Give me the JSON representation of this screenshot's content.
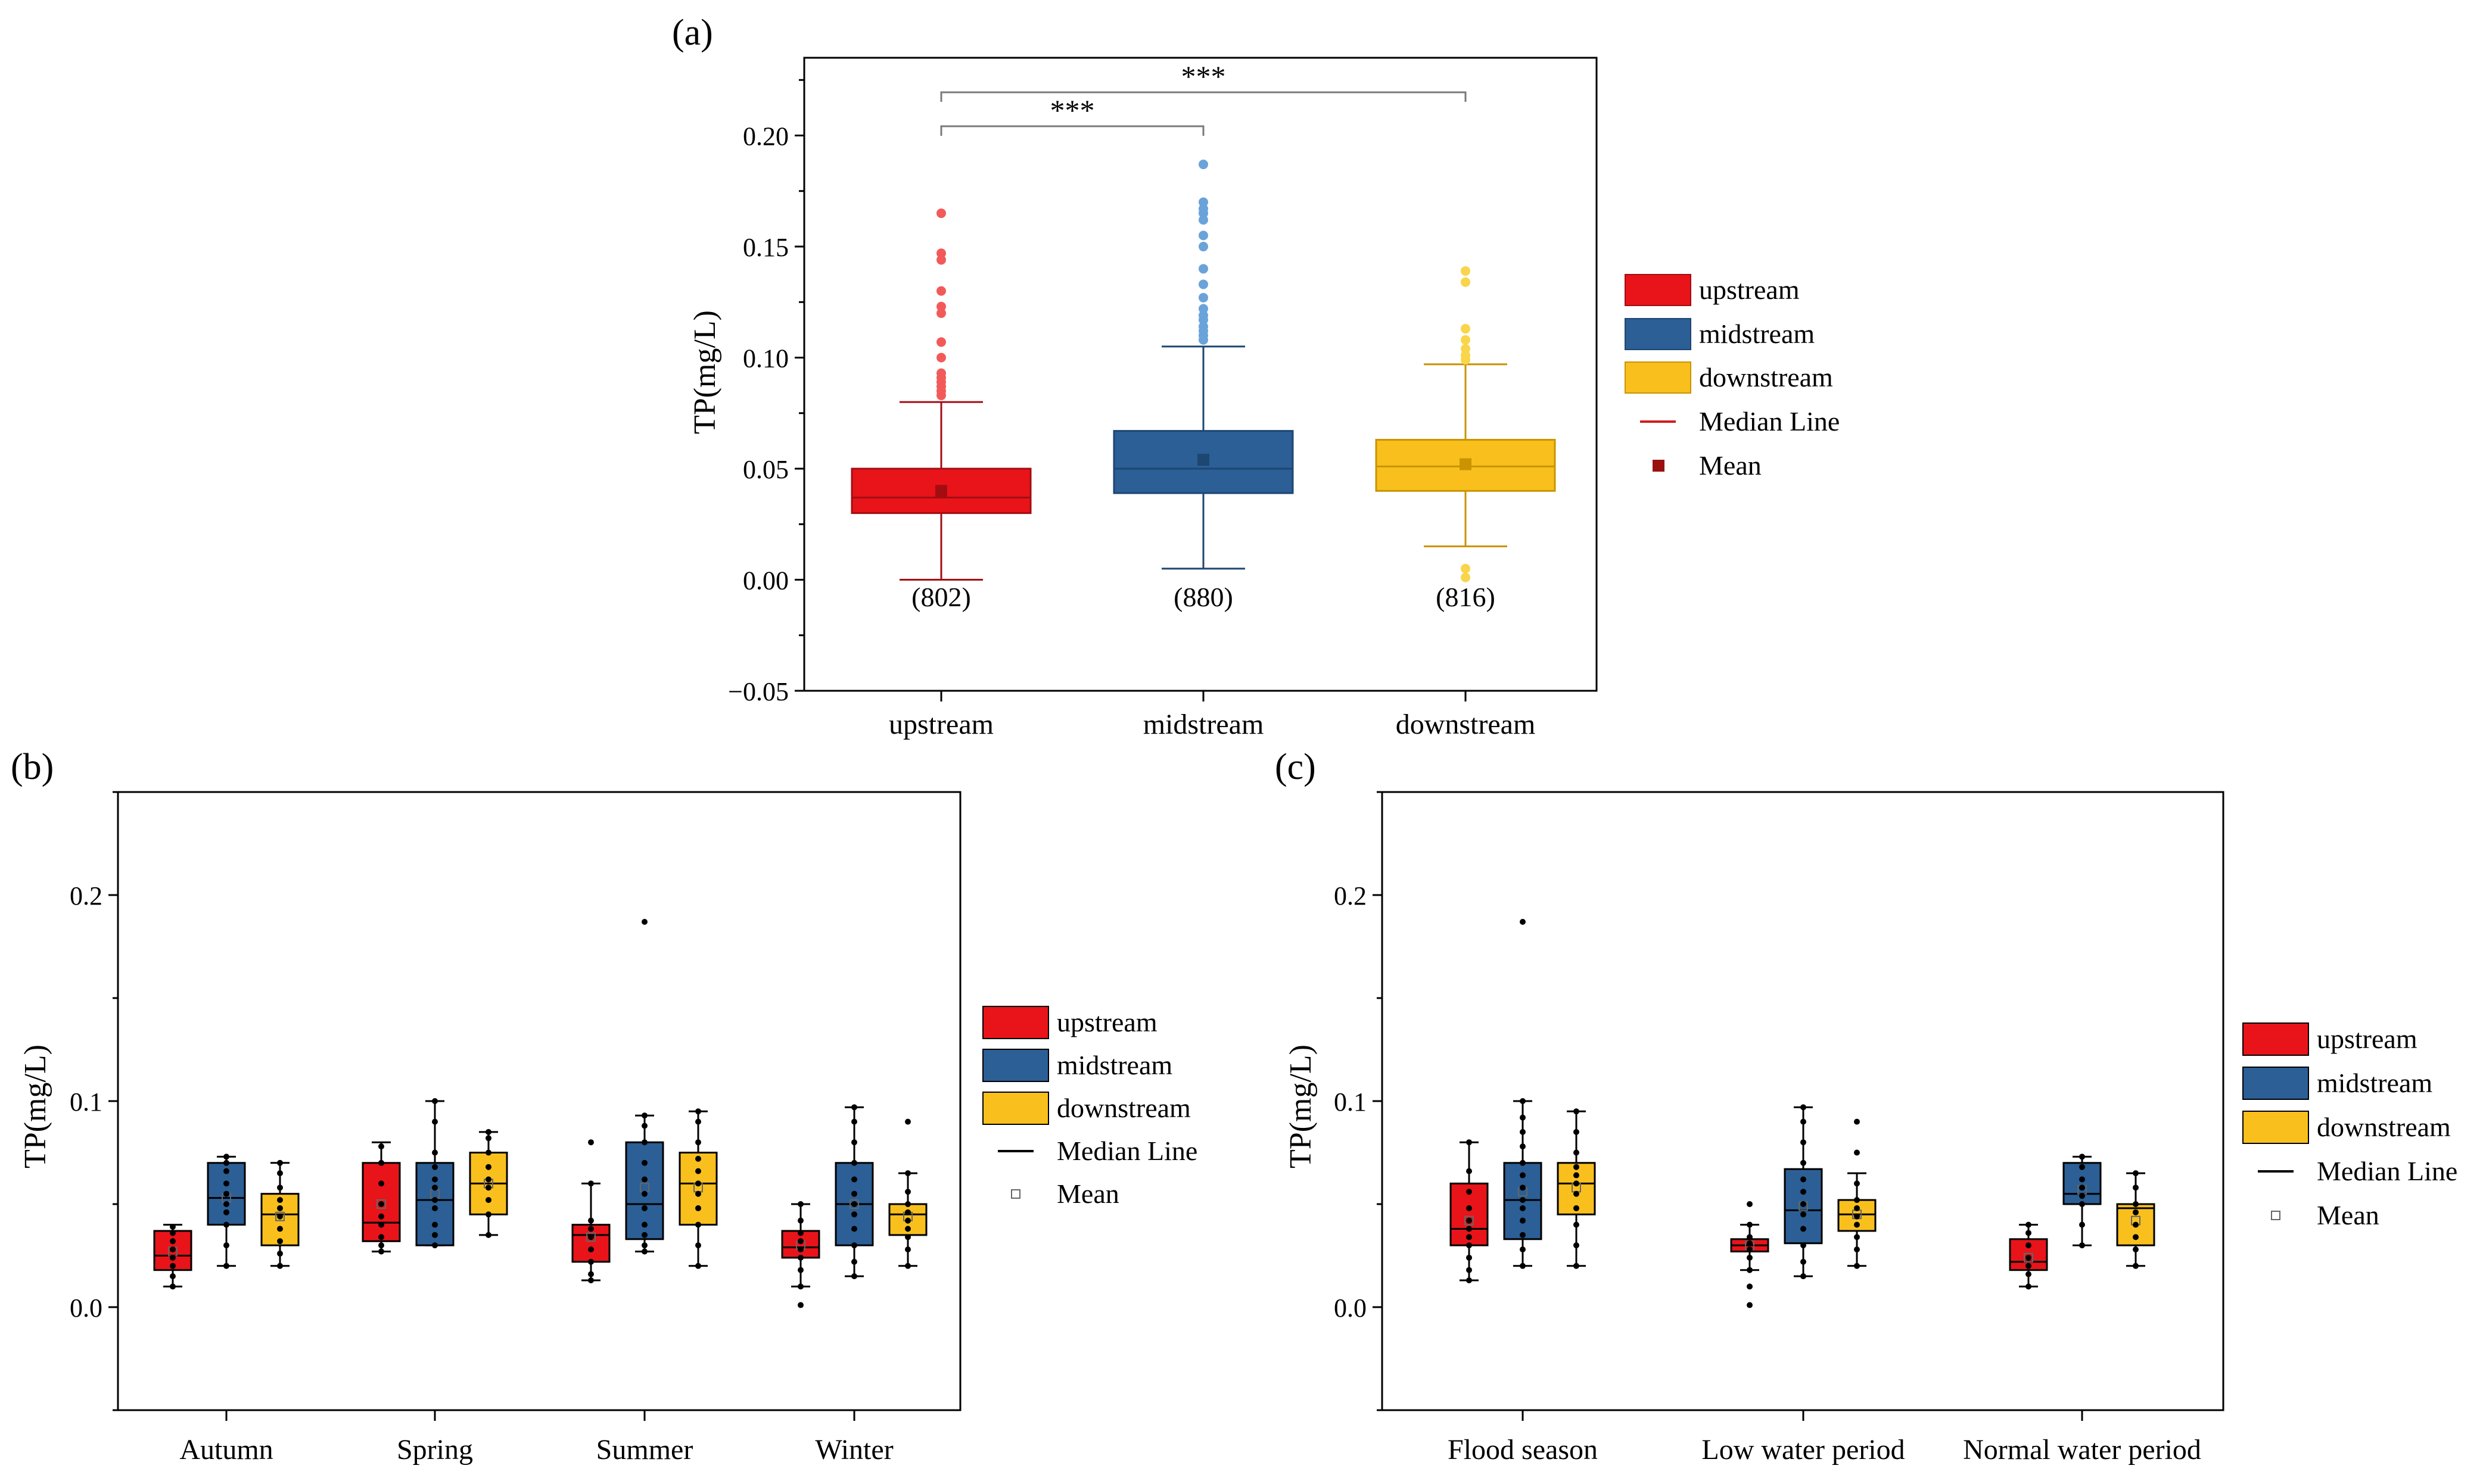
{
  "figure": {
    "categories": [
      "upstream",
      "midstream",
      "downstream"
    ],
    "colors": {
      "upstream": "#e8141a",
      "midstream": "#2b5f96",
      "downstream": "#f9c01d",
      "upstream_light": "#f25a5a",
      "midstream_light": "#6aa3d9",
      "downstream_light": "#f8d54a",
      "upstream_line": "#a30d12",
      "midstream_line": "#1e4672",
      "downstream_line": "#c99400",
      "median_line": "#d01c1c",
      "mean_marker": "#9a1010",
      "axis": "#000000",
      "bracket": "#7a7a7a"
    }
  },
  "chart_data": [
    {
      "id": "a",
      "panel_label": "(a)",
      "type": "box",
      "ylabel": "TP(mg/L)",
      "xlabel": "",
      "ylim": [
        -0.05,
        0.235
      ],
      "yticks": [
        -0.05,
        0.0,
        0.05,
        0.1,
        0.15,
        0.2
      ],
      "ytick_labels": [
        "−0.05",
        "0.00",
        "0.05",
        "0.10",
        "0.15",
        "0.20"
      ],
      "grid": false,
      "categories": [
        "upstream",
        "midstream",
        "downstream"
      ],
      "boxes": [
        {
          "category": "upstream",
          "q1": 0.03,
          "median": 0.037,
          "q3": 0.05,
          "whisker_low": 0.0,
          "whisker_high": 0.08,
          "mean": 0.04,
          "outliers": [
            0.083,
            0.085,
            0.087,
            0.089,
            0.091,
            0.093,
            0.1,
            0.107,
            0.12,
            0.123,
            0.13,
            0.144,
            0.147,
            0.165
          ]
        },
        {
          "category": "midstream",
          "q1": 0.039,
          "median": 0.05,
          "q3": 0.067,
          "whisker_low": 0.005,
          "whisker_high": 0.105,
          "mean": 0.054,
          "outliers": [
            0.108,
            0.11,
            0.112,
            0.114,
            0.117,
            0.119,
            0.122,
            0.127,
            0.133,
            0.14,
            0.15,
            0.155,
            0.162,
            0.165,
            0.167,
            0.17,
            0.187
          ]
        },
        {
          "category": "downstream",
          "q1": 0.04,
          "median": 0.051,
          "q3": 0.063,
          "whisker_low": 0.015,
          "whisker_high": 0.097,
          "mean": 0.052,
          "outliers": [
            0.001,
            0.005,
            0.099,
            0.101,
            0.104,
            0.108,
            0.113,
            0.134,
            0.139
          ]
        }
      ],
      "sample_sizes": [
        "(802)",
        "(880)",
        "(816)"
      ],
      "significance": [
        {
          "from": "upstream",
          "to": "midstream",
          "label": "***"
        },
        {
          "from": "upstream",
          "to": "downstream",
          "label": "***"
        }
      ],
      "legend": {
        "position": "right",
        "items": [
          {
            "label": "upstream",
            "kind": "box",
            "color_key": "upstream"
          },
          {
            "label": "midstream",
            "kind": "box",
            "color_key": "midstream"
          },
          {
            "label": "downstream",
            "kind": "box",
            "color_key": "downstream"
          },
          {
            "label": "Median Line",
            "kind": "line",
            "color_key": "median_line"
          },
          {
            "label": "Mean",
            "kind": "square",
            "color_key": "mean_marker"
          }
        ]
      }
    },
    {
      "id": "b",
      "panel_label": "(b)",
      "type": "box",
      "ylabel": "TP(mg/L)",
      "xlabel": "",
      "ylim": [
        -0.05,
        0.25
      ],
      "yticks": [
        0.0,
        0.1,
        0.2
      ],
      "ytick_labels": [
        "0.0",
        "0.1",
        "0.2"
      ],
      "grid": false,
      "groups": [
        "Autumn",
        "Spring",
        "Summer",
        "Winter"
      ],
      "series": [
        {
          "name": "upstream",
          "boxes": [
            {
              "q1": 0.018,
              "median": 0.025,
              "q3": 0.037,
              "low": 0.01,
              "high": 0.04,
              "mean": 0.027,
              "points": [
                0.01,
                0.015,
                0.02,
                0.024,
                0.028,
                0.032,
                0.036,
                0.039
              ]
            },
            {
              "q1": 0.032,
              "median": 0.041,
              "q3": 0.07,
              "low": 0.027,
              "high": 0.08,
              "mean": 0.05,
              "points": [
                0.027,
                0.03,
                0.034,
                0.04,
                0.044,
                0.05,
                0.06,
                0.07,
                0.078
              ]
            },
            {
              "q1": 0.022,
              "median": 0.035,
              "q3": 0.04,
              "low": 0.013,
              "high": 0.06,
              "mean": 0.034,
              "points": [
                0.013,
                0.016,
                0.022,
                0.028,
                0.034,
                0.038,
                0.042,
                0.06,
                0.08
              ]
            },
            {
              "q1": 0.024,
              "median": 0.029,
              "q3": 0.037,
              "low": 0.01,
              "high": 0.05,
              "mean": 0.03,
              "points": [
                0.001,
                0.01,
                0.018,
                0.024,
                0.028,
                0.032,
                0.036,
                0.042,
                0.05
              ]
            }
          ]
        },
        {
          "name": "midstream",
          "boxes": [
            {
              "q1": 0.04,
              "median": 0.053,
              "q3": 0.07,
              "low": 0.02,
              "high": 0.073,
              "mean": 0.053,
              "points": [
                0.02,
                0.03,
                0.04,
                0.046,
                0.05,
                0.055,
                0.06,
                0.066,
                0.07,
                0.073
              ]
            },
            {
              "q1": 0.03,
              "median": 0.052,
              "q3": 0.07,
              "low": 0.03,
              "high": 0.1,
              "mean": 0.055,
              "points": [
                0.03,
                0.035,
                0.04,
                0.048,
                0.052,
                0.058,
                0.062,
                0.068,
                0.075,
                0.09,
                0.1
              ]
            },
            {
              "q1": 0.033,
              "median": 0.05,
              "q3": 0.08,
              "low": 0.027,
              "high": 0.093,
              "mean": 0.058,
              "points": [
                0.027,
                0.03,
                0.035,
                0.04,
                0.048,
                0.055,
                0.062,
                0.07,
                0.08,
                0.088,
                0.093,
                0.187
              ]
            },
            {
              "q1": 0.03,
              "median": 0.05,
              "q3": 0.07,
              "low": 0.015,
              "high": 0.097,
              "mean": 0.05,
              "points": [
                0.015,
                0.022,
                0.03,
                0.038,
                0.045,
                0.05,
                0.055,
                0.062,
                0.07,
                0.08,
                0.09,
                0.097
              ]
            }
          ]
        },
        {
          "name": "downstream",
          "boxes": [
            {
              "q1": 0.03,
              "median": 0.045,
              "q3": 0.055,
              "low": 0.02,
              "high": 0.07,
              "mean": 0.044,
              "points": [
                0.02,
                0.026,
                0.032,
                0.038,
                0.044,
                0.048,
                0.052,
                0.058,
                0.065,
                0.07
              ]
            },
            {
              "q1": 0.045,
              "median": 0.06,
              "q3": 0.075,
              "low": 0.035,
              "high": 0.085,
              "mean": 0.06,
              "points": [
                0.035,
                0.045,
                0.052,
                0.058,
                0.062,
                0.068,
                0.075,
                0.082,
                0.085
              ]
            },
            {
              "q1": 0.04,
              "median": 0.06,
              "q3": 0.075,
              "low": 0.02,
              "high": 0.095,
              "mean": 0.058,
              "points": [
                0.02,
                0.03,
                0.04,
                0.048,
                0.055,
                0.06,
                0.066,
                0.072,
                0.08,
                0.09,
                0.095
              ]
            },
            {
              "q1": 0.035,
              "median": 0.045,
              "q3": 0.05,
              "low": 0.02,
              "high": 0.065,
              "mean": 0.044,
              "points": [
                0.02,
                0.028,
                0.034,
                0.038,
                0.042,
                0.046,
                0.05,
                0.056,
                0.065,
                0.09
              ]
            }
          ]
        }
      ],
      "legend": {
        "position": "right",
        "items": [
          {
            "label": "upstream",
            "kind": "box",
            "color_key": "upstream"
          },
          {
            "label": "midstream",
            "kind": "box",
            "color_key": "midstream"
          },
          {
            "label": "downstream",
            "kind": "box",
            "color_key": "downstream"
          },
          {
            "label": "Median Line",
            "kind": "line",
            "color_key": "axis"
          },
          {
            "label": "Mean",
            "kind": "open-square",
            "color_key": "axis"
          }
        ]
      }
    },
    {
      "id": "c",
      "panel_label": "(c)",
      "type": "box",
      "ylabel": "TP(mg/L)",
      "xlabel": "",
      "ylim": [
        -0.05,
        0.25
      ],
      "yticks": [
        0.0,
        0.1,
        0.2
      ],
      "ytick_labels": [
        "0.0",
        "0.1",
        "0.2"
      ],
      "grid": false,
      "groups": [
        "Flood season",
        "Low water period",
        "Normal water period"
      ],
      "series": [
        {
          "name": "upstream",
          "boxes": [
            {
              "q1": 0.03,
              "median": 0.038,
              "q3": 0.06,
              "low": 0.013,
              "high": 0.08,
              "mean": 0.042,
              "points": [
                0.013,
                0.018,
                0.024,
                0.03,
                0.034,
                0.038,
                0.042,
                0.048,
                0.056,
                0.066,
                0.08
              ]
            },
            {
              "q1": 0.027,
              "median": 0.03,
              "q3": 0.033,
              "low": 0.018,
              "high": 0.04,
              "mean": 0.03,
              "points": [
                0.001,
                0.01,
                0.018,
                0.024,
                0.028,
                0.031,
                0.034,
                0.04,
                0.05
              ]
            },
            {
              "q1": 0.018,
              "median": 0.022,
              "q3": 0.033,
              "low": 0.01,
              "high": 0.04,
              "mean": 0.024,
              "points": [
                0.01,
                0.016,
                0.02,
                0.024,
                0.03,
                0.036,
                0.04
              ]
            }
          ]
        },
        {
          "name": "midstream",
          "boxes": [
            {
              "q1": 0.033,
              "median": 0.052,
              "q3": 0.07,
              "low": 0.02,
              "high": 0.1,
              "mean": 0.056,
              "points": [
                0.02,
                0.028,
                0.035,
                0.042,
                0.048,
                0.052,
                0.058,
                0.064,
                0.07,
                0.078,
                0.085,
                0.092,
                0.1,
                0.187
              ]
            },
            {
              "q1": 0.031,
              "median": 0.047,
              "q3": 0.067,
              "low": 0.015,
              "high": 0.097,
              "mean": 0.049,
              "points": [
                0.015,
                0.022,
                0.03,
                0.038,
                0.045,
                0.05,
                0.056,
                0.062,
                0.07,
                0.08,
                0.09,
                0.097
              ]
            },
            {
              "q1": 0.05,
              "median": 0.055,
              "q3": 0.07,
              "low": 0.03,
              "high": 0.073,
              "mean": 0.057,
              "points": [
                0.03,
                0.04,
                0.05,
                0.054,
                0.058,
                0.062,
                0.068,
                0.073
              ]
            }
          ]
        },
        {
          "name": "downstream",
          "boxes": [
            {
              "q1": 0.045,
              "median": 0.06,
              "q3": 0.07,
              "low": 0.02,
              "high": 0.095,
              "mean": 0.058,
              "points": [
                0.02,
                0.03,
                0.04,
                0.048,
                0.055,
                0.06,
                0.064,
                0.068,
                0.075,
                0.085,
                0.095
              ]
            },
            {
              "q1": 0.037,
              "median": 0.045,
              "q3": 0.052,
              "low": 0.02,
              "high": 0.065,
              "mean": 0.045,
              "points": [
                0.02,
                0.028,
                0.034,
                0.04,
                0.044,
                0.048,
                0.052,
                0.06,
                0.075,
                0.09
              ]
            },
            {
              "q1": 0.03,
              "median": 0.048,
              "q3": 0.05,
              "low": 0.02,
              "high": 0.065,
              "mean": 0.042,
              "points": [
                0.02,
                0.028,
                0.034,
                0.04,
                0.046,
                0.05,
                0.058,
                0.065
              ]
            }
          ]
        }
      ],
      "legend": {
        "position": "right",
        "items": [
          {
            "label": "upstream",
            "kind": "box",
            "color_key": "upstream"
          },
          {
            "label": "midstream",
            "kind": "box",
            "color_key": "midstream"
          },
          {
            "label": "downstream",
            "kind": "box",
            "color_key": "downstream"
          },
          {
            "label": "Median Line",
            "kind": "line",
            "color_key": "axis"
          },
          {
            "label": "Mean",
            "kind": "open-square",
            "color_key": "axis"
          }
        ]
      }
    }
  ]
}
